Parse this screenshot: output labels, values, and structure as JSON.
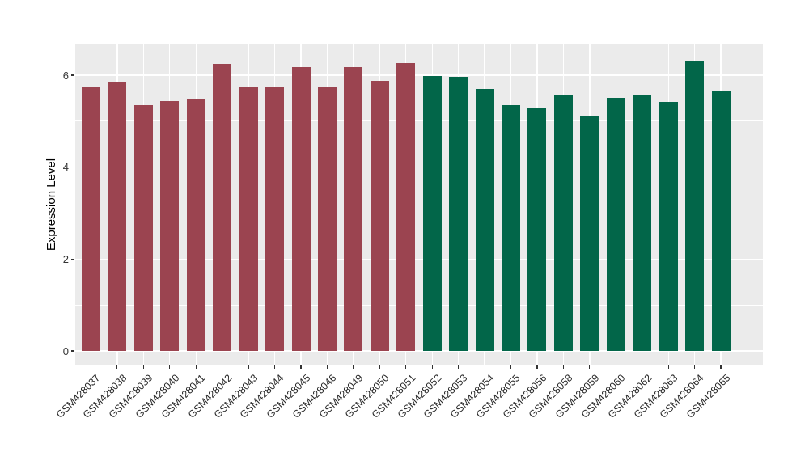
{
  "chart_data": {
    "type": "bar",
    "title": "",
    "xlabel": "",
    "ylabel": "Expression Level",
    "ylim": [
      0,
      6.67
    ],
    "ytick_labels": [
      "0",
      "2",
      "4",
      "6"
    ],
    "ytick_values": [
      0,
      2,
      4,
      6
    ],
    "grid": true,
    "legend_position": "none",
    "panel_background": "#EBEBEB",
    "gridline_color": "#FFFFFF",
    "axis_text_color": "#333333",
    "categories": [
      "GSM428037",
      "GSM428038",
      "GSM428039",
      "GSM428040",
      "GSM428041",
      "GSM428042",
      "GSM428043",
      "GSM428044",
      "GSM428045",
      "GSM428046",
      "GSM428049",
      "GSM428050",
      "GSM428051",
      "GSM428052",
      "GSM428053",
      "GSM428054",
      "GSM428055",
      "GSM428056",
      "GSM428058",
      "GSM428059",
      "GSM428060",
      "GSM428062",
      "GSM428063",
      "GSM428064",
      "GSM428065"
    ],
    "values": [
      5.75,
      5.86,
      5.35,
      5.44,
      5.49,
      6.25,
      5.75,
      5.75,
      6.17,
      5.73,
      6.18,
      5.88,
      6.26,
      5.99,
      5.97,
      5.7,
      5.35,
      5.27,
      5.58,
      5.1,
      5.51,
      5.57,
      5.42,
      6.32,
      5.66
    ],
    "groups": [
      {
        "name": "group-1",
        "color": "#9B4450",
        "from": 0,
        "to": 12
      },
      {
        "name": "group-2",
        "color": "#026649",
        "from": 13,
        "to": 24
      }
    ]
  }
}
